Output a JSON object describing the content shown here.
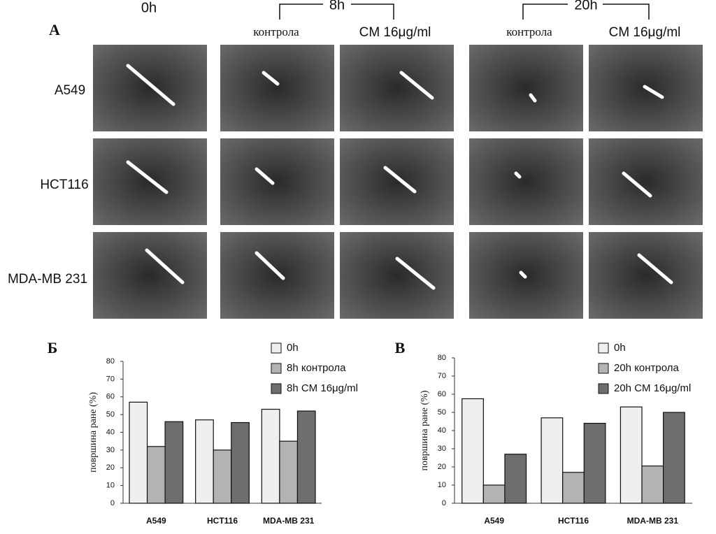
{
  "figure": {
    "panel_label": "A",
    "time_headers": [
      "0h",
      "8h",
      "20h"
    ],
    "condition_headers": [
      "контрола",
      "CM 16μg/ml",
      "контрола",
      "CM 16μg/ml"
    ],
    "row_labels": [
      "A549",
      "HCT116",
      "MDA-MB 231"
    ]
  },
  "chart_data": [
    {
      "type": "bar",
      "panel_label": "Б",
      "y_label": "површина ране (%)",
      "categories": [
        "A549",
        "HCT116",
        "MDA-MB 231"
      ],
      "series": [
        {
          "name": "0h",
          "color": "#efefef",
          "values": [
            57,
            47,
            53
          ]
        },
        {
          "name": "8h контрола",
          "color": "#b3b3b3",
          "values": [
            32,
            30,
            35
          ]
        },
        {
          "name": "8h CM 16μg/ml",
          "color": "#6e6e6e",
          "values": [
            46,
            45.5,
            52
          ]
        }
      ],
      "ylim": [
        0,
        80
      ],
      "yticks": [
        0,
        10,
        20,
        30,
        40,
        50,
        60,
        70,
        80
      ],
      "grid": false,
      "legend": "top-right"
    },
    {
      "type": "bar",
      "panel_label": "В",
      "y_label": "површина ране (%)",
      "categories": [
        "A549",
        "HCT116",
        "MDA-MB 231"
      ],
      "series": [
        {
          "name": "0h",
          "color": "#efefef",
          "values": [
            57.5,
            47,
            53
          ]
        },
        {
          "name": "20h контрола",
          "color": "#b3b3b3",
          "values": [
            10,
            17,
            20.5
          ]
        },
        {
          "name": "20h CM 16μg/ml",
          "color": "#6e6e6e",
          "values": [
            27,
            44,
            50
          ]
        }
      ],
      "ylim": [
        0,
        80
      ],
      "yticks": [
        0,
        10,
        20,
        30,
        40,
        50,
        60,
        70,
        80
      ],
      "grid": false,
      "legend": "top-right"
    }
  ]
}
